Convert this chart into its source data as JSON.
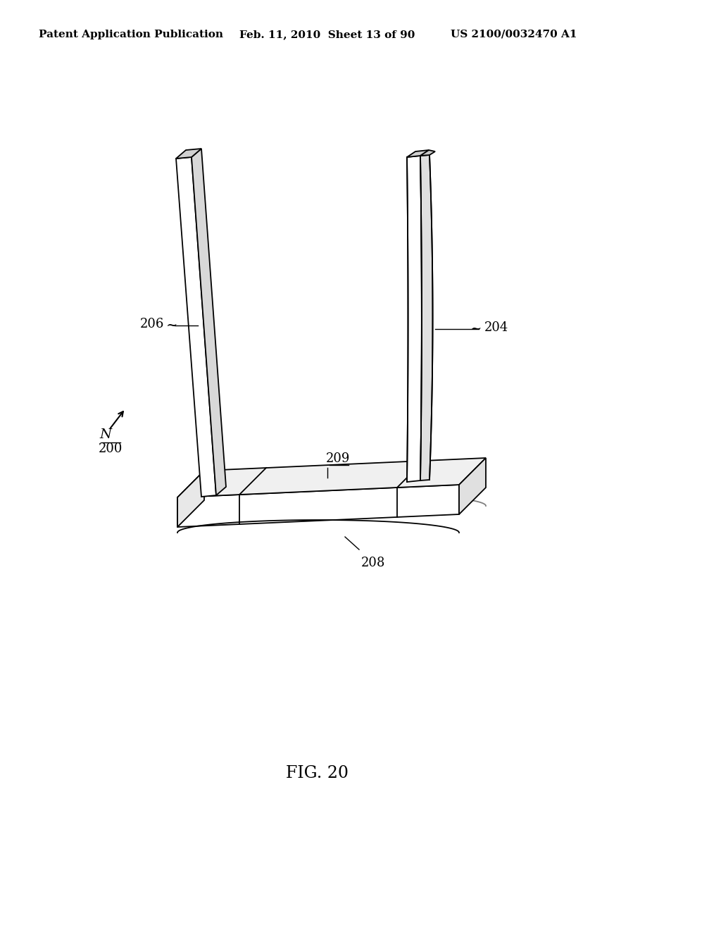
{
  "background_color": "#ffffff",
  "line_color": "#000000",
  "header_left": "Patent Application Publication",
  "header_center": "Feb. 11, 2010  Sheet 13 of 90",
  "header_right": "US 2100/0032470 A1",
  "figure_label": "FIG. 20",
  "header_fontsize": 11,
  "label_fontsize": 13,
  "fig_label_fontsize": 17
}
